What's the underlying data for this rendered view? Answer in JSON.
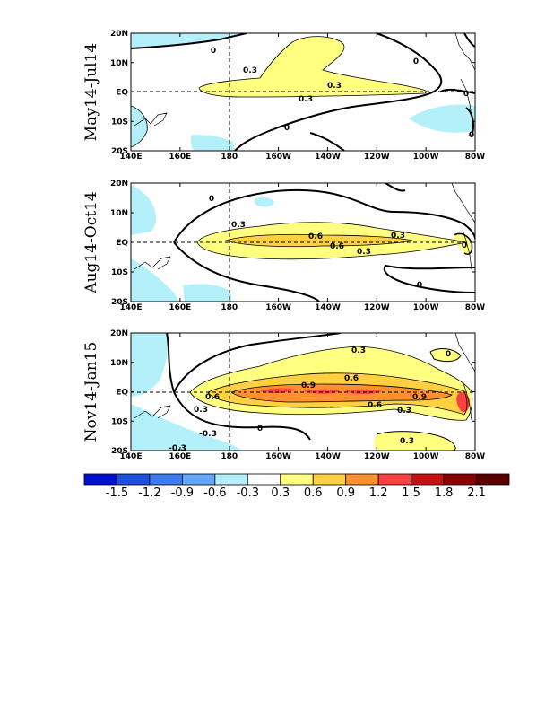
{
  "chart_data": [
    {
      "type": "heatmap",
      "title": "May14-Jul14",
      "x_ticks": [
        "140E",
        "160E",
        "180",
        "160W",
        "140W",
        "120W",
        "100W",
        "80W"
      ],
      "y_ticks": [
        "20N",
        "10N",
        "EQ",
        "10S",
        "20S"
      ],
      "contour_labels": [
        "0.3",
        "0.3",
        "0.3",
        "0",
        "0",
        "0",
        "0",
        "0"
      ],
      "shaded_regions": [
        {
          "range": "0.3 to 0.6",
          "color": "#ffff80"
        },
        {
          "range": "-0.6 to -0.3",
          "color": "#b4f0fa"
        }
      ]
    },
    {
      "type": "heatmap",
      "title": "Aug14-Oct14",
      "x_ticks": [
        "140E",
        "160E",
        "180",
        "160W",
        "140W",
        "120W",
        "100W",
        "80W"
      ],
      "y_ticks": [
        "20N",
        "10N",
        "EQ",
        "10S",
        "20S"
      ],
      "contour_labels": [
        "0.3",
        "0.6",
        "0.6",
        "0.3",
        "0.3",
        "0",
        "0",
        "0"
      ],
      "shaded_regions": [
        {
          "range": "0.3 to 0.6",
          "color": "#ffff80"
        },
        {
          "range": "0.6 to 0.9",
          "color": "#ffd040"
        },
        {
          "range": "-0.6 to -0.3",
          "color": "#b4f0fa"
        }
      ]
    },
    {
      "type": "heatmap",
      "title": "Nov14-Jan15",
      "x_ticks": [
        "140E",
        "160E",
        "180",
        "160W",
        "140W",
        "120W",
        "100W",
        "80W"
      ],
      "y_ticks": [
        "20N",
        "10N",
        "EQ",
        "10S",
        "20S"
      ],
      "contour_labels": [
        "0.3",
        "0.6",
        "0.9",
        "0.6",
        "0.6",
        "0.3",
        "0.9",
        "0.3",
        "0.3",
        "-0.3",
        "-0.3",
        "0",
        "0"
      ],
      "shaded_regions": [
        {
          "range": "0.3 to 0.6",
          "color": "#ffff80"
        },
        {
          "range": "0.6 to 0.9",
          "color": "#ffd040"
        },
        {
          "range": "0.9 to 1.2",
          "color": "#ff9030"
        },
        {
          "range": "1.2 to 1.5",
          "color": "#ff4040"
        },
        {
          "range": "-0.6 to -0.3",
          "color": "#b4f0fa"
        }
      ]
    }
  ],
  "colorbar": {
    "labels": [
      "-1.5",
      "-1.2",
      "-0.9",
      "-0.6",
      "-0.3",
      "0.3",
      "0.6",
      "0.9",
      "1.2",
      "1.5",
      "1.8",
      "2.1"
    ],
    "colors": [
      "#0010d0",
      "#1e50e0",
      "#3c7cf0",
      "#64a6fa",
      "#b4f0fa",
      "#ffffff",
      "#ffff80",
      "#ffd040",
      "#ff9030",
      "#ff4040",
      "#c81010",
      "#8a0000",
      "#5a0000"
    ]
  }
}
